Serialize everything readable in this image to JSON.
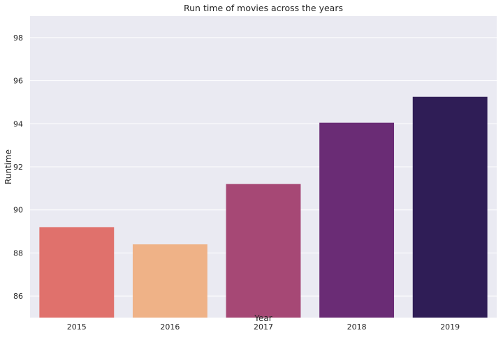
{
  "chart_data": {
    "type": "bar",
    "title": "Run time of movies across the years",
    "xlabel": "Year",
    "ylabel": "Runtime",
    "categories": [
      "2015",
      "2016",
      "2017",
      "2018",
      "2019"
    ],
    "values": [
      89.2,
      88.4,
      91.2,
      94.05,
      95.25
    ],
    "colors": [
      "#e0716c",
      "#efb287",
      "#a64875",
      "#6a2c75",
      "#2f1d56"
    ],
    "ylim": [
      85,
      99
    ],
    "yticks": [
      86,
      88,
      90,
      92,
      94,
      96,
      98
    ],
    "grid": true,
    "background": "#eaeaf2"
  }
}
